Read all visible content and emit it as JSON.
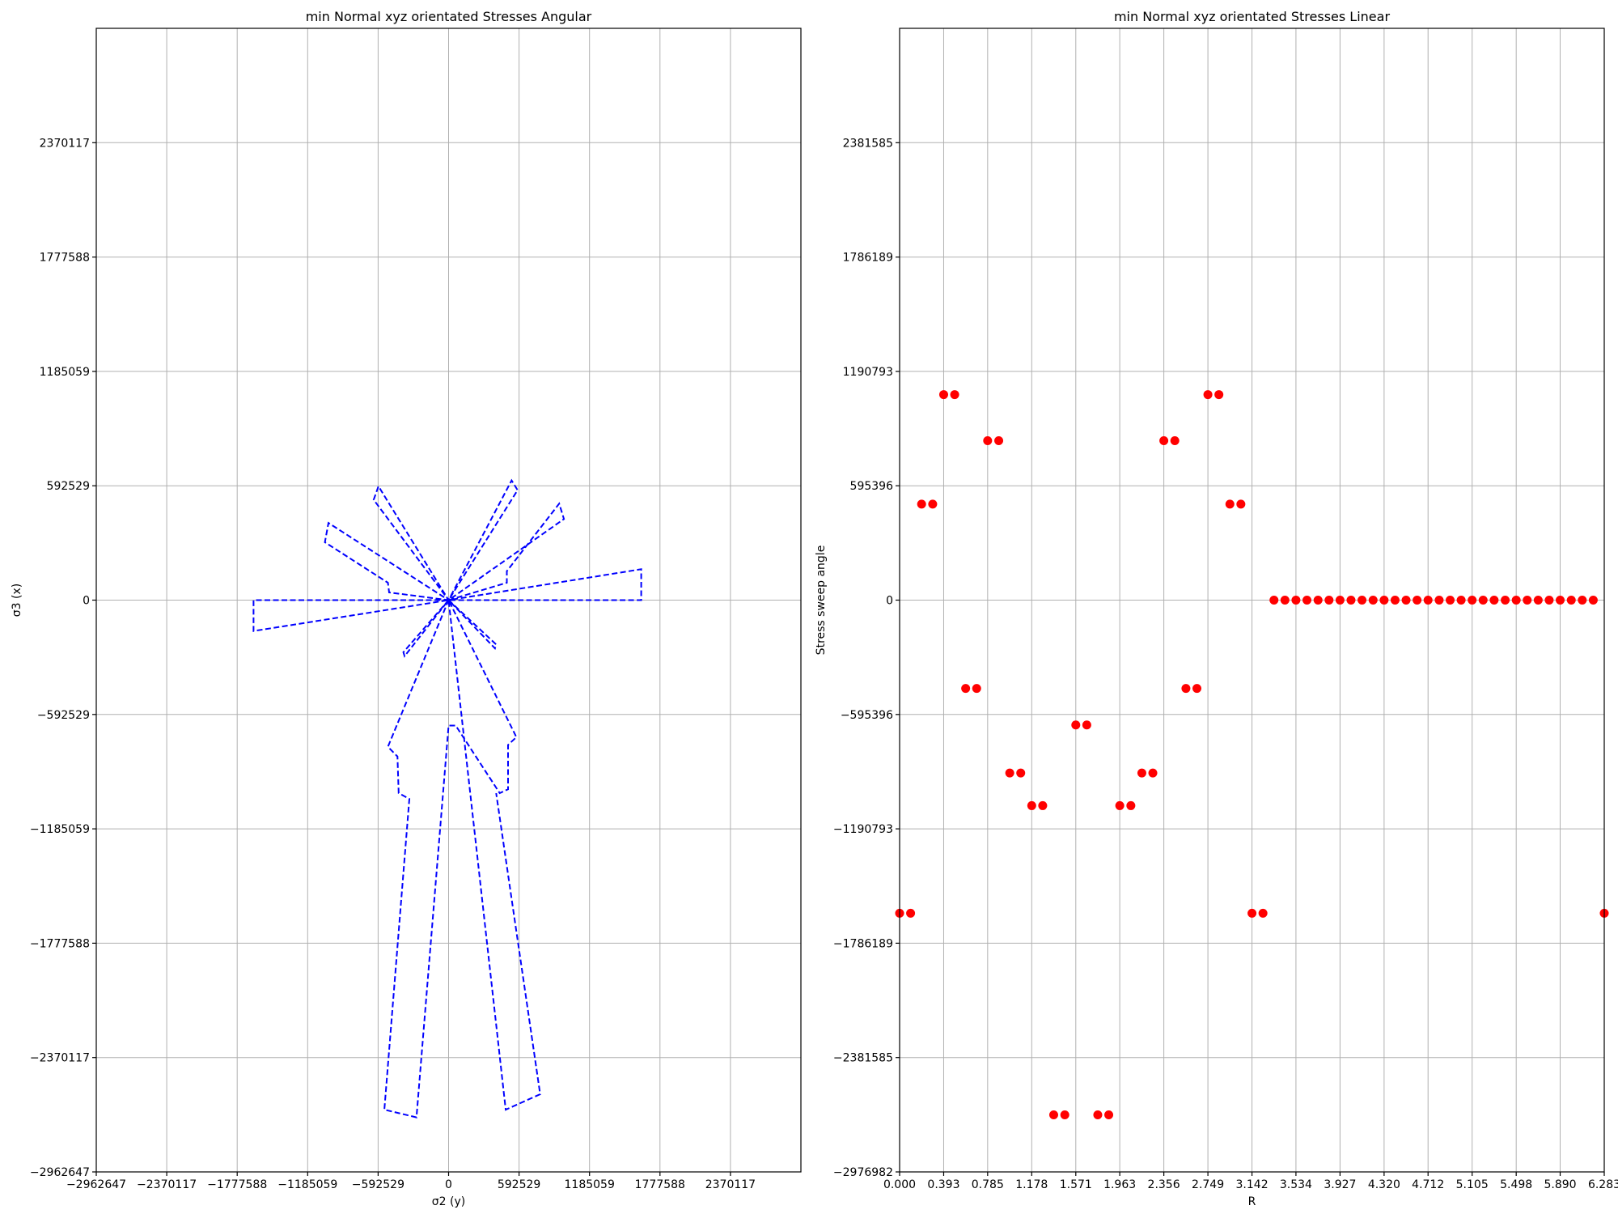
{
  "chart_data": [
    {
      "type": "line",
      "title": "min Normal xyz orientated  Stresses Angular",
      "xlabel": "σ2 (y)",
      "ylabel": "σ3 (x)",
      "xlim": [
        -2962647,
        2962647
      ],
      "ylim": [
        -2962647,
        2962647
      ],
      "xticks": [
        -2962647,
        -2370117,
        -1777588,
        -1185059,
        -592529,
        0,
        592529,
        1185059,
        1777588,
        2370117
      ],
      "xtick_labels": [
        "−2962647",
        "−2370117",
        "−1777588",
        "−1185059",
        "−592529",
        "0",
        "592529",
        "1185059",
        "1777588",
        "2370117"
      ],
      "yticks": [
        -2962647,
        -2370117,
        -1777588,
        -1185059,
        -592529,
        0,
        592529,
        1185059,
        1777588,
        2370117
      ],
      "ytick_labels": [
        "−2962647",
        "−2370117",
        "−1777588",
        "−1185059",
        "−592529",
        "0",
        "592529",
        "1185059",
        "1777588",
        "2370117"
      ],
      "grid": true,
      "line_color": "#0000ff",
      "line_style": "dashed",
      "series": [
        {
          "points": [
            [
              0,
              0
            ],
            [
              -1640000,
              0
            ],
            [
              -1640000,
              -160000
            ],
            [
              0,
              0
            ],
            [
              1620000,
              0
            ],
            [
              1620000,
              160000
            ],
            [
              0,
              0
            ],
            [
              -500000,
              40000
            ],
            [
              -510000,
              90000
            ],
            [
              -1040000,
              300000
            ],
            [
              -1010000,
              400000
            ],
            [
              0,
              0
            ],
            [
              -630000,
              520000
            ],
            [
              -590000,
              590000
            ],
            [
              0,
              0
            ],
            [
              530000,
              620000
            ],
            [
              580000,
              570000
            ],
            [
              0,
              0
            ],
            [
              490000,
              90000
            ],
            [
              490000,
              150000
            ],
            [
              930000,
              500000
            ],
            [
              970000,
              420000
            ],
            [
              0,
              0
            ],
            [
              -380000,
              -270000
            ],
            [
              -370000,
              -290000
            ],
            [
              0,
              0
            ],
            [
              400000,
              -230000
            ],
            [
              390000,
              -250000
            ],
            [
              0,
              0
            ],
            [
              -510000,
              -760000
            ],
            [
              -430000,
              -810000
            ],
            [
              -420000,
              -1000000
            ],
            [
              -330000,
              -1030000
            ],
            [
              -540000,
              -2640000
            ],
            [
              -270000,
              -2680000
            ],
            [
              0,
              -650000
            ],
            [
              60000,
              -650000
            ],
            [
              430000,
              -1000000
            ],
            [
              500000,
              -980000
            ],
            [
              500000,
              -750000
            ],
            [
              570000,
              -710000
            ],
            [
              0,
              0
            ],
            [
              480000,
              -2640000
            ],
            [
              770000,
              -2560000
            ],
            [
              400000,
              -1000000
            ]
          ]
        }
      ]
    },
    {
      "type": "scatter",
      "title": "min Normal xyz orientated  Stresses Linear",
      "xlabel": "R",
      "ylabel": "Stress sweep angle",
      "xlim": [
        0,
        6.283
      ],
      "ylim": [
        -2976982,
        2976982
      ],
      "xticks": [
        0,
        0.393,
        0.785,
        1.178,
        1.571,
        1.963,
        2.356,
        2.749,
        3.142,
        3.534,
        3.927,
        4.32,
        4.712,
        5.105,
        5.498,
        5.89,
        6.283
      ],
      "xtick_labels": [
        "0.000",
        "0.393",
        "0.785",
        "1.178",
        "1.571",
        "1.963",
        "2.356",
        "2.749",
        "3.142",
        "3.534",
        "3.927",
        "4.320",
        "4.712",
        "5.105",
        "5.498",
        "5.890",
        "6.283"
      ],
      "yticks": [
        -2976982,
        -2381585,
        -1786189,
        -1190793,
        -595396,
        0,
        595396,
        1190793,
        1786189,
        2381585
      ],
      "ytick_labels": [
        "−2976982",
        "−2381585",
        "−1786189",
        "−1190793",
        "−595396",
        "0",
        "595396",
        "1190793",
        "1786189",
        "2381585"
      ],
      "grid": true,
      "marker_color": "#ff0000",
      "x": [
        0.0,
        0.098,
        0.196,
        0.295,
        0.393,
        0.491,
        0.589,
        0.687,
        0.785,
        0.884,
        0.982,
        1.08,
        1.178,
        1.276,
        1.374,
        1.473,
        1.571,
        1.669,
        1.767,
        1.865,
        1.963,
        2.062,
        2.16,
        2.258,
        2.356,
        2.454,
        2.553,
        2.651,
        2.749,
        2.847,
        2.945,
        3.043,
        3.142,
        3.24,
        3.338,
        3.436,
        3.534,
        3.632,
        3.731,
        3.829,
        3.927,
        4.025,
        4.123,
        4.222,
        4.32,
        4.418,
        4.516,
        4.614,
        4.712,
        4.811,
        4.909,
        5.007,
        5.105,
        5.203,
        5.301,
        5.4,
        5.498,
        5.596,
        5.694,
        5.792,
        5.89,
        5.989,
        6.087,
        6.185,
        6.283
      ],
      "y": [
        -1630000,
        -1630000,
        500000,
        500000,
        1070000,
        1070000,
        -460000,
        -460000,
        830000,
        830000,
        -900000,
        -900000,
        -1070000,
        -1070000,
        -2680000,
        -2680000,
        -650000,
        -650000,
        -2680000,
        -2680000,
        -1070000,
        -1070000,
        -900000,
        -900000,
        830000,
        830000,
        -460000,
        -460000,
        1070000,
        1070000,
        500000,
        500000,
        -1630000,
        -1630000,
        0,
        0,
        0,
        0,
        0,
        0,
        0,
        0,
        0,
        0,
        0,
        0,
        0,
        0,
        0,
        0,
        0,
        0,
        0,
        0,
        0,
        0,
        0,
        0,
        0,
        0,
        0,
        0,
        0,
        0,
        -1630000
      ]
    }
  ]
}
